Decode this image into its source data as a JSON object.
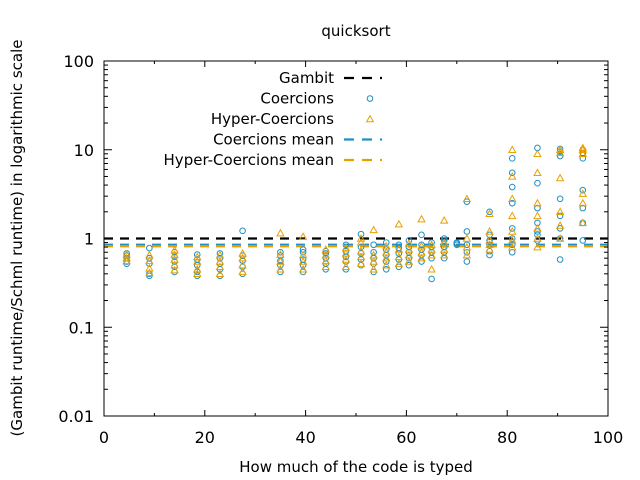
{
  "chart_data": {
    "type": "scatter",
    "title": "quicksort",
    "xlabel": "How much of the code is typed",
    "ylabel": "(Gambit runtime/Schml runtime) in logarithmic scale",
    "xlim": [
      0,
      100
    ],
    "ylim": [
      0.01,
      100
    ],
    "y_scale": "log",
    "x_ticks": [
      0,
      20,
      40,
      60,
      80,
      100
    ],
    "x_tick_labels": [
      "0",
      "20",
      "40",
      "60",
      "80",
      "100"
    ],
    "y_ticks": [
      0.01,
      0.1,
      1,
      10,
      100
    ],
    "y_tick_labels": [
      "0.01",
      "0.1",
      "1",
      "10",
      "100"
    ],
    "grid": false,
    "legend_position": "top-center",
    "colors": {
      "gambit": "#000000",
      "coercions": "#1f8fc7",
      "hyper": "#e8a000",
      "axis": "#000000"
    },
    "legend": [
      {
        "label": "Gambit",
        "series": "gambit",
        "kind": "dash"
      },
      {
        "label": "Coercions",
        "series": "coercions",
        "kind": "circle"
      },
      {
        "label": "Hyper-Coercions",
        "series": "hyper",
        "kind": "triangle"
      },
      {
        "label": "Coercions mean",
        "series": "coercions",
        "kind": "dash"
      },
      {
        "label": "Hyper-Coercions mean",
        "series": "hyper",
        "kind": "dash"
      }
    ],
    "reference_lines": [
      {
        "series": "gambit",
        "y": 1.0
      },
      {
        "series": "coercions",
        "y": 0.85
      },
      {
        "series": "hyper",
        "y": 0.85
      }
    ],
    "series": [
      {
        "name": "Coercions",
        "marker": "circle",
        "points": [
          [
            4.5,
            0.52
          ],
          [
            4.5,
            0.55
          ],
          [
            4.5,
            0.6
          ],
          [
            4.5,
            0.64
          ],
          [
            4.5,
            0.68
          ],
          [
            9,
            0.38
          ],
          [
            9,
            0.4
          ],
          [
            9,
            0.52
          ],
          [
            9,
            0.6
          ],
          [
            9,
            0.78
          ],
          [
            14,
            0.42
          ],
          [
            14,
            0.48
          ],
          [
            14,
            0.55
          ],
          [
            14,
            0.62
          ],
          [
            14,
            0.7
          ],
          [
            18.5,
            0.38
          ],
          [
            18.5,
            0.42
          ],
          [
            18.5,
            0.5
          ],
          [
            18.5,
            0.58
          ],
          [
            18.5,
            0.66
          ],
          [
            23,
            0.38
          ],
          [
            23,
            0.45
          ],
          [
            23,
            0.52
          ],
          [
            23,
            0.6
          ],
          [
            23,
            0.68
          ],
          [
            27.5,
            0.4
          ],
          [
            27.5,
            0.48
          ],
          [
            27.5,
            0.56
          ],
          [
            27.5,
            0.64
          ],
          [
            27.5,
            1.22
          ],
          [
            35,
            0.42
          ],
          [
            35,
            0.5
          ],
          [
            35,
            0.56
          ],
          [
            35,
            0.64
          ],
          [
            35,
            0.7
          ],
          [
            39.5,
            0.42
          ],
          [
            39.5,
            0.5
          ],
          [
            39.5,
            0.58
          ],
          [
            39.5,
            0.7
          ],
          [
            39.5,
            0.75
          ],
          [
            44,
            0.45
          ],
          [
            44,
            0.52
          ],
          [
            44,
            0.6
          ],
          [
            44,
            0.68
          ],
          [
            44,
            0.72
          ],
          [
            48,
            0.45
          ],
          [
            48,
            0.55
          ],
          [
            48,
            0.62
          ],
          [
            48,
            0.72
          ],
          [
            48,
            0.85
          ],
          [
            51,
            0.5
          ],
          [
            51,
            0.58
          ],
          [
            51,
            0.68
          ],
          [
            51,
            0.8
          ],
          [
            51,
            1.12
          ],
          [
            53.5,
            0.42
          ],
          [
            53.5,
            0.52
          ],
          [
            53.5,
            0.6
          ],
          [
            53.5,
            0.7
          ],
          [
            53.5,
            0.85
          ],
          [
            56,
            0.45
          ],
          [
            56,
            0.55
          ],
          [
            56,
            0.65
          ],
          [
            56,
            0.75
          ],
          [
            56,
            0.9
          ],
          [
            58.5,
            0.48
          ],
          [
            58.5,
            0.58
          ],
          [
            58.5,
            0.68
          ],
          [
            58.5,
            0.78
          ],
          [
            58.5,
            0.85
          ],
          [
            60.5,
            0.5
          ],
          [
            60.5,
            0.6
          ],
          [
            60.5,
            0.7
          ],
          [
            60.5,
            0.8
          ],
          [
            60.5,
            0.95
          ],
          [
            63,
            0.55
          ],
          [
            63,
            0.65
          ],
          [
            63,
            0.75
          ],
          [
            63,
            0.85
          ],
          [
            63,
            1.1
          ],
          [
            65,
            0.35
          ],
          [
            65,
            0.6
          ],
          [
            65,
            0.7
          ],
          [
            65,
            0.8
          ],
          [
            65,
            0.9
          ],
          [
            67.5,
            0.6
          ],
          [
            67.5,
            0.7
          ],
          [
            67.5,
            0.8
          ],
          [
            67.5,
            0.95
          ],
          [
            67.5,
            1.0
          ],
          [
            70,
            0.85
          ],
          [
            70,
            0.88
          ],
          [
            70,
            0.9
          ],
          [
            72,
            0.55
          ],
          [
            72,
            0.7
          ],
          [
            72,
            0.85
          ],
          [
            72,
            1.2
          ],
          [
            72,
            2.6
          ],
          [
            76.5,
            0.65
          ],
          [
            76.5,
            0.72
          ],
          [
            76.5,
            0.85
          ],
          [
            76.5,
            0.95
          ],
          [
            76.5,
            1.1
          ],
          [
            76.5,
            2.0
          ],
          [
            81,
            0.7
          ],
          [
            81,
            0.85
          ],
          [
            81,
            1.0
          ],
          [
            81,
            1.3
          ],
          [
            81,
            2.5
          ],
          [
            81,
            3.8
          ],
          [
            81,
            5.5
          ],
          [
            81,
            8.0
          ],
          [
            86,
            0.95
          ],
          [
            86,
            1.1
          ],
          [
            86,
            1.2
          ],
          [
            86,
            1.5
          ],
          [
            86,
            2.2
          ],
          [
            86,
            4.2
          ],
          [
            86,
            10.5
          ],
          [
            90.5,
            0.58
          ],
          [
            90.5,
            1.0
          ],
          [
            90.5,
            1.3
          ],
          [
            90.5,
            1.8
          ],
          [
            90.5,
            2.8
          ],
          [
            90.5,
            8.5
          ],
          [
            90.5,
            9.5
          ],
          [
            90.5,
            10.2
          ],
          [
            95,
            0.95
          ],
          [
            95,
            1.5
          ],
          [
            95,
            2.2
          ],
          [
            95,
            3.5
          ],
          [
            95,
            8.0
          ],
          [
            95,
            9.2
          ],
          [
            95,
            10.0
          ]
        ]
      },
      {
        "name": "Hyper-Coercions",
        "marker": "triangle",
        "points": [
          [
            4.5,
            0.56
          ],
          [
            4.5,
            0.6
          ],
          [
            4.5,
            0.66
          ],
          [
            9,
            0.41
          ],
          [
            9,
            0.46
          ],
          [
            9,
            0.56
          ],
          [
            9,
            0.65
          ],
          [
            14,
            0.44
          ],
          [
            14,
            0.5
          ],
          [
            14,
            0.58
          ],
          [
            14,
            0.66
          ],
          [
            14,
            0.74
          ],
          [
            18.5,
            0.4
          ],
          [
            18.5,
            0.45
          ],
          [
            18.5,
            0.55
          ],
          [
            18.5,
            0.62
          ],
          [
            23,
            0.4
          ],
          [
            23,
            0.48
          ],
          [
            23,
            0.55
          ],
          [
            23,
            0.65
          ],
          [
            27.5,
            0.42
          ],
          [
            27.5,
            0.5
          ],
          [
            27.5,
            0.6
          ],
          [
            27.5,
            0.68
          ],
          [
            35,
            0.45
          ],
          [
            35,
            0.55
          ],
          [
            35,
            0.66
          ],
          [
            35,
            1.15
          ],
          [
            39.5,
            0.45
          ],
          [
            39.5,
            0.55
          ],
          [
            39.5,
            0.65
          ],
          [
            39.5,
            1.05
          ],
          [
            44,
            0.48
          ],
          [
            44,
            0.56
          ],
          [
            44,
            0.65
          ],
          [
            44,
            0.75
          ],
          [
            48,
            0.48
          ],
          [
            48,
            0.58
          ],
          [
            48,
            0.68
          ],
          [
            48,
            0.78
          ],
          [
            51,
            0.52
          ],
          [
            51,
            0.62
          ],
          [
            51,
            0.72
          ],
          [
            51,
            0.9
          ],
          [
            51,
            1.0
          ],
          [
            53.5,
            0.45
          ],
          [
            53.5,
            0.55
          ],
          [
            53.5,
            0.65
          ],
          [
            53.5,
            1.25
          ],
          [
            56,
            0.5
          ],
          [
            56,
            0.6
          ],
          [
            56,
            0.7
          ],
          [
            56,
            0.82
          ],
          [
            58.5,
            0.52
          ],
          [
            58.5,
            0.62
          ],
          [
            58.5,
            0.75
          ],
          [
            58.5,
            1.45
          ],
          [
            60.5,
            0.55
          ],
          [
            60.5,
            0.65
          ],
          [
            60.5,
            0.75
          ],
          [
            60.5,
            0.88
          ],
          [
            63,
            0.6
          ],
          [
            63,
            0.7
          ],
          [
            63,
            0.82
          ],
          [
            63,
            1.65
          ],
          [
            65,
            0.45
          ],
          [
            65,
            0.65
          ],
          [
            65,
            0.75
          ],
          [
            65,
            0.85
          ],
          [
            67.5,
            0.65
          ],
          [
            67.5,
            0.75
          ],
          [
            67.5,
            0.9
          ],
          [
            67.5,
            1.6
          ],
          [
            72,
            0.65
          ],
          [
            72,
            0.8
          ],
          [
            72,
            1.0
          ],
          [
            72,
            2.8
          ],
          [
            76.5,
            0.75
          ],
          [
            76.5,
            0.85
          ],
          [
            76.5,
            0.95
          ],
          [
            76.5,
            1.2
          ],
          [
            76.5,
            1.9
          ],
          [
            81,
            0.8
          ],
          [
            81,
            0.95
          ],
          [
            81,
            1.2
          ],
          [
            81,
            1.8
          ],
          [
            81,
            2.8
          ],
          [
            81,
            5.0
          ],
          [
            81,
            10.0
          ],
          [
            86,
            0.8
          ],
          [
            86,
            1.0
          ],
          [
            86,
            1.3
          ],
          [
            86,
            1.8
          ],
          [
            86,
            2.5
          ],
          [
            86,
            5.5
          ],
          [
            86,
            9.0
          ],
          [
            90.5,
            1.0
          ],
          [
            90.5,
            1.4
          ],
          [
            90.5,
            2.0
          ],
          [
            90.5,
            4.8
          ],
          [
            90.5,
            9.2
          ],
          [
            90.5,
            10.0
          ],
          [
            95,
            1.5
          ],
          [
            95,
            2.5
          ],
          [
            95,
            3.2
          ],
          [
            95,
            9.0
          ],
          [
            95,
            10.0
          ],
          [
            95,
            10.5
          ]
        ]
      }
    ]
  }
}
